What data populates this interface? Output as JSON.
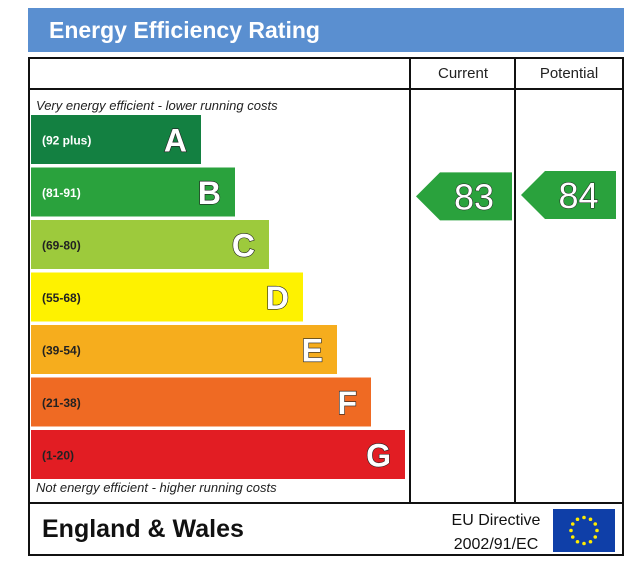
{
  "header": {
    "title": "Energy Efficiency Rating"
  },
  "columns": {
    "current_label": "Current",
    "potential_label": "Potential"
  },
  "notes": {
    "top": "Very energy efficient - lower running costs",
    "bottom": "Not energy efficient - higher running costs"
  },
  "footer": {
    "region": "England & Wales",
    "directive_line1": "EU Directive",
    "directive_line2": "2002/91/EC",
    "flag_icon": "eu-flag-icon"
  },
  "chart_data": {
    "type": "bar",
    "title": "Energy Efficiency Rating",
    "categories": [
      "A",
      "B",
      "C",
      "D",
      "E",
      "F",
      "G"
    ],
    "bands": [
      {
        "letter": "A",
        "range": "(92 plus)",
        "color": "#138041"
      },
      {
        "letter": "B",
        "range": "(81-91)",
        "color": "#2aa23d"
      },
      {
        "letter": "C",
        "range": "(69-80)",
        "color": "#9dca3c"
      },
      {
        "letter": "D",
        "range": "(55-68)",
        "color": "#fef200"
      },
      {
        "letter": "E",
        "range": "(39-54)",
        "color": "#f6ad1d"
      },
      {
        "letter": "F",
        "range": "(21-38)",
        "color": "#ef6a23"
      },
      {
        "letter": "G",
        "range": "(1-20)",
        "color": "#e21d23"
      }
    ],
    "current": {
      "value": 83,
      "color": "#2aa23d"
    },
    "potential": {
      "value": 84,
      "color": "#2aa23d"
    }
  }
}
